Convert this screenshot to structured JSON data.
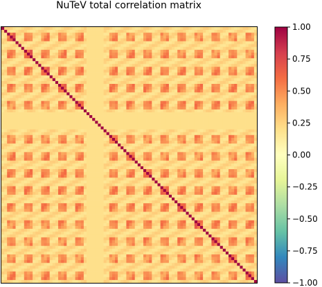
{
  "chart_data": {
    "type": "heatmap",
    "title": "NuTeV total correlation matrix",
    "xlabel": "",
    "ylabel": "",
    "matrix_size": 90,
    "block_size": 6,
    "value_range": [
      -1.0,
      1.0
    ],
    "colormap": "Spectral_r",
    "colorbar": {
      "ticks": [
        1.0,
        0.75,
        0.5,
        0.25,
        0.0,
        -0.25,
        -0.5,
        -0.75,
        -1.0
      ],
      "tick_labels": [
        "1.00",
        "0.75",
        "0.50",
        "0.25",
        "0.00",
        "−0.25",
        "−0.50",
        "−0.75",
        "−1.00"
      ]
    },
    "pattern": {
      "diagonal_value": 1.0,
      "low_correlation_bins": [
        0,
        1,
        5
      ],
      "low_correlation_value": 0.22,
      "within_block_value": 0.62,
      "across_block_value": 0.5,
      "weak_band_blocks": [
        5
      ],
      "weak_band_value": 0.2
    },
    "grid": false,
    "legend": "none"
  }
}
